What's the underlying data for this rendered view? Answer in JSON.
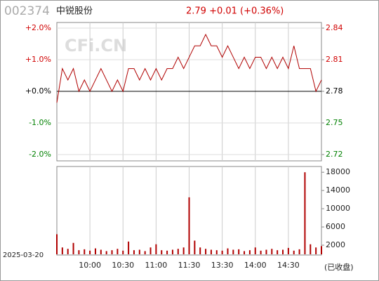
{
  "header": {
    "code": "002374",
    "name": "中锐股份",
    "quote": "2.79 +0.01 (+0.36%)"
  },
  "watermark": "CFi.CN",
  "date": "2025-03-20",
  "status": "(已收盘)",
  "chart_data": [
    {
      "type": "line",
      "x": [
        0,
        5,
        10,
        15,
        20,
        25,
        30,
        35,
        40,
        45,
        50,
        55,
        60,
        65,
        70,
        75,
        80,
        85,
        90,
        95,
        100,
        105,
        110,
        115,
        120,
        125,
        130,
        135,
        140,
        145,
        150,
        155,
        160,
        165,
        170,
        175,
        180,
        185,
        190,
        195,
        200,
        205,
        210,
        215,
        220,
        225,
        230,
        235,
        240
      ],
      "xlim": [
        0,
        240
      ],
      "ylim": [
        -2,
        2
      ],
      "yticks": [
        {
          "value": 2,
          "label": "+2.0%"
        },
        {
          "value": 1,
          "label": "+1.0%"
        },
        {
          "value": 0,
          "label": "+0.0%"
        },
        {
          "value": -1,
          "label": "-1.0%"
        },
        {
          "value": -2,
          "label": "-2.0%"
        }
      ],
      "y2lim": [
        2.7244,
        2.8356
      ],
      "y2ticks": [
        {
          "value": 2.8356,
          "label": "2.84"
        },
        {
          "value": 2.8078,
          "label": "2.81"
        },
        2.78,
        {
          "value": 2.7522,
          "label": "2.75"
        },
        {
          "value": 2.7244,
          "label": "2.72"
        }
      ],
      "grid": true,
      "series": [
        {
          "color": "#b00000",
          "axis": "y2",
          "values": [
            2.77,
            2.8,
            2.79,
            2.8,
            2.78,
            2.79,
            2.78,
            2.79,
            2.8,
            2.79,
            2.78,
            2.79,
            2.78,
            2.8,
            2.8,
            2.79,
            2.8,
            2.79,
            2.8,
            2.79,
            2.8,
            2.8,
            2.81,
            2.8,
            2.81,
            2.82,
            2.82,
            2.83,
            2.82,
            2.82,
            2.81,
            2.82,
            2.81,
            2.8,
            2.81,
            2.8,
            2.81,
            2.81,
            2.8,
            2.81,
            2.8,
            2.81,
            2.8,
            2.82,
            2.8,
            2.8,
            2.8,
            2.78,
            2.79
          ]
        }
      ]
    },
    {
      "type": "bar",
      "x": [
        0,
        5,
        10,
        15,
        20,
        25,
        30,
        35,
        40,
        45,
        50,
        55,
        60,
        65,
        70,
        75,
        80,
        85,
        90,
        95,
        100,
        105,
        110,
        115,
        120,
        125,
        130,
        135,
        140,
        145,
        150,
        155,
        160,
        165,
        170,
        175,
        180,
        185,
        190,
        195,
        200,
        205,
        210,
        215,
        220,
        225,
        230,
        235,
        240
      ],
      "xlim": [
        0,
        240
      ],
      "xticks": [
        {
          "value": 30,
          "label": "10:00"
        },
        {
          "value": 60,
          "label": "10:30"
        },
        {
          "value": 90,
          "label": "11:00"
        },
        {
          "value": 120,
          "label": "11:30"
        },
        {
          "value": 150,
          "label": "13:30"
        },
        {
          "value": 180,
          "label": "14:00"
        },
        {
          "value": 210,
          "label": "14:30"
        }
      ],
      "ylim": [
        0,
        18800
      ],
      "yticks": [
        2000,
        6000,
        10000,
        14000,
        18000
      ],
      "color": "#b00000",
      "values": [
        4400,
        1500,
        1200,
        2500,
        900,
        1100,
        800,
        1300,
        1000,
        700,
        900,
        1200,
        800,
        2800,
        900,
        1000,
        700,
        1500,
        2200,
        900,
        800,
        1000,
        1200,
        1500,
        12500,
        3000,
        1500,
        1200,
        1000,
        900,
        800,
        1300,
        1000,
        1100,
        700,
        900,
        1500,
        800,
        1000,
        1200,
        900,
        1000,
        1400,
        800,
        1100,
        18000,
        2200,
        1500,
        1800
      ]
    }
  ]
}
